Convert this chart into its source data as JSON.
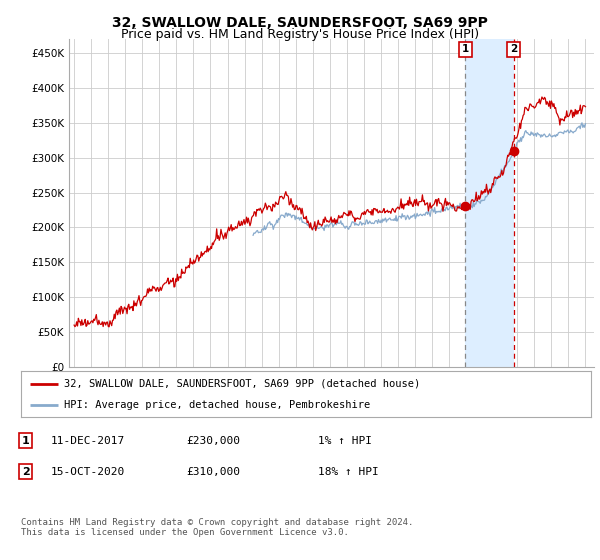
{
  "title": "32, SWALLOW DALE, SAUNDERSFOOT, SA69 9PP",
  "subtitle": "Price paid vs. HM Land Registry's House Price Index (HPI)",
  "ylabel_ticks": [
    "£0",
    "£50K",
    "£100K",
    "£150K",
    "£200K",
    "£250K",
    "£300K",
    "£350K",
    "£400K",
    "£450K"
  ],
  "ytick_values": [
    0,
    50000,
    100000,
    150000,
    200000,
    250000,
    300000,
    350000,
    400000,
    450000
  ],
  "ylim": [
    0,
    470000
  ],
  "xlim_start": 1994.7,
  "xlim_end": 2025.5,
  "red_line_color": "#cc0000",
  "blue_line_color": "#88aacc",
  "shade_color": "#ddeeff",
  "marker1_x": 2017.95,
  "marker1_y": 230000,
  "marker2_x": 2020.79,
  "marker2_y": 310000,
  "marker1_label": "1",
  "marker2_label": "2",
  "legend_red": "32, SWALLOW DALE, SAUNDERSFOOT, SA69 9PP (detached house)",
  "legend_blue": "HPI: Average price, detached house, Pembrokeshire",
  "table_rows": [
    {
      "num": "1",
      "date": "11-DEC-2017",
      "price": "£230,000",
      "change": "1% ↑ HPI"
    },
    {
      "num": "2",
      "date": "15-OCT-2020",
      "price": "£310,000",
      "change": "18% ↑ HPI"
    }
  ],
  "footnote": "Contains HM Land Registry data © Crown copyright and database right 2024.\nThis data is licensed under the Open Government Licence v3.0.",
  "background_color": "#ffffff",
  "plot_bg_color": "#ffffff",
  "grid_color": "#cccccc",
  "title_fontsize": 10,
  "subtitle_fontsize": 9
}
